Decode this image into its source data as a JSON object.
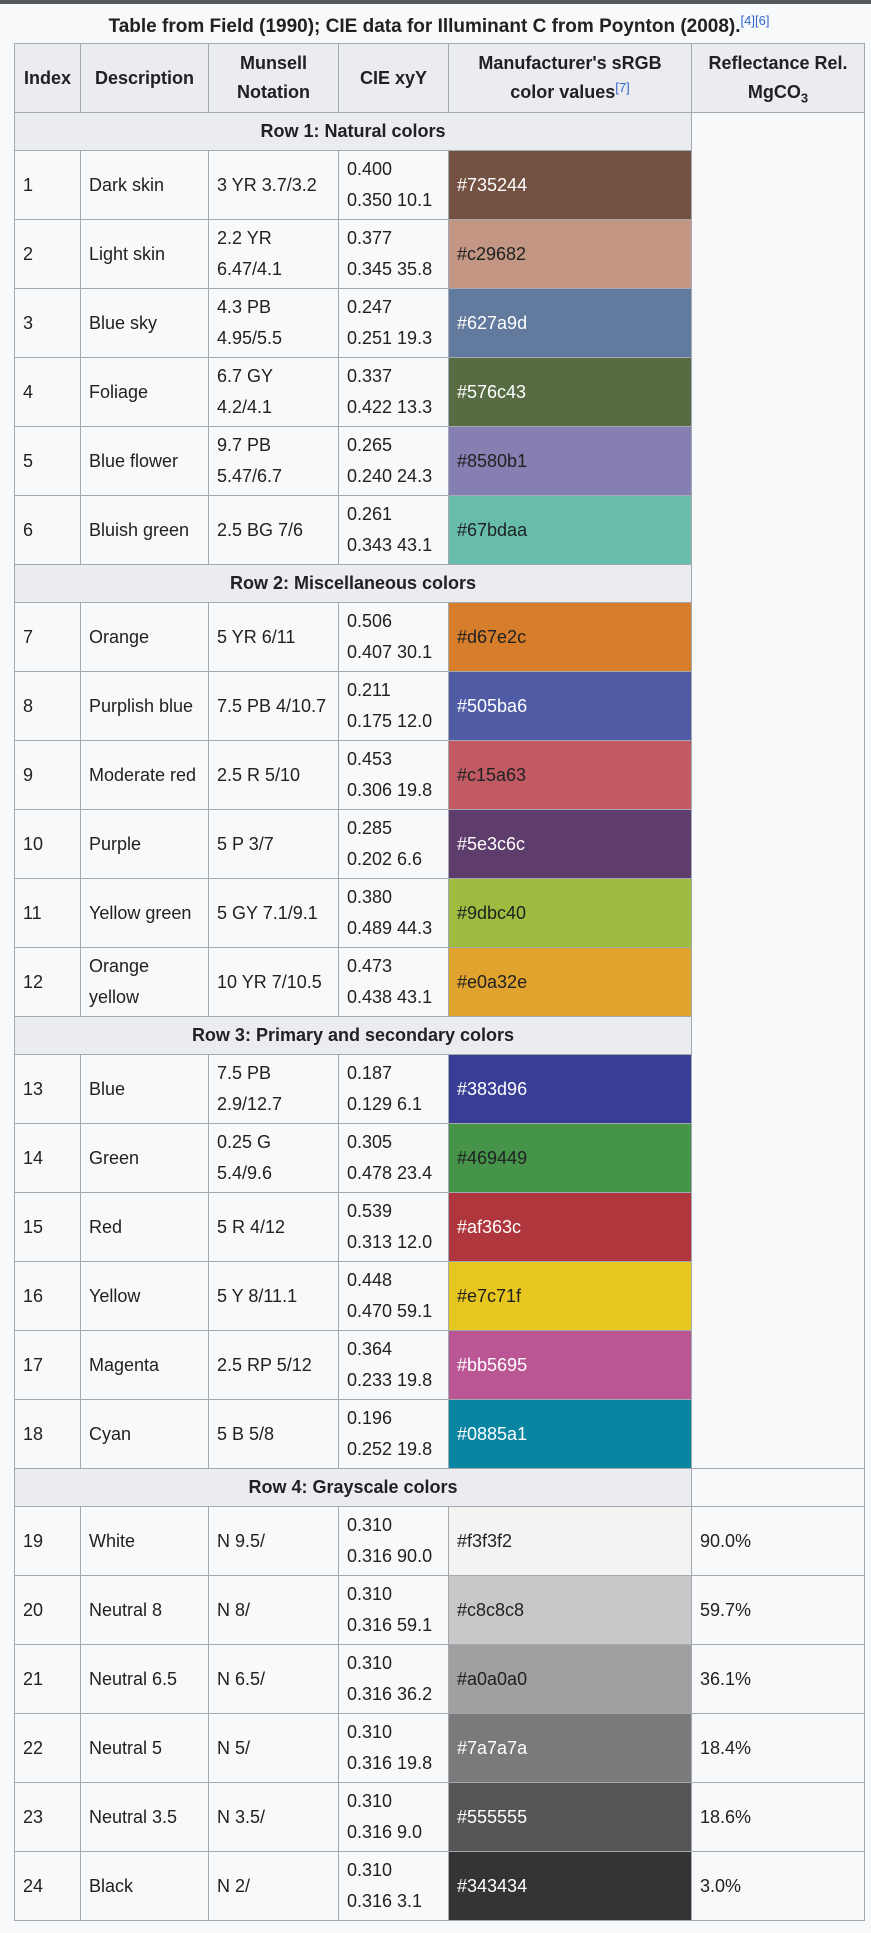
{
  "caption": {
    "text": "Table from Field (1990); CIE data for Illuminant C from Poynton (2008).",
    "refs": "[4][6]"
  },
  "headers": {
    "index": "Index",
    "description": "Description",
    "munsell_line1": "Munsell",
    "munsell_line2": "Notation",
    "cie": "CIE xyY",
    "srgb_line1": "Manufacturer's sRGB",
    "srgb_line2": "color values",
    "srgb_ref": "[7]",
    "refl_line1": "Reflectance Rel.",
    "refl_line2": "MgCO",
    "refl_sub": "3"
  },
  "groups": [
    {
      "title": "Row 1: Natural colors",
      "rows": [
        {
          "index": "1",
          "desc": "Dark skin",
          "munsell": "3 YR 3.7/3.2",
          "cie1": "0.400",
          "cie2": "0.350 10.1",
          "hex": "#735244",
          "text_color": "#ffffff"
        },
        {
          "index": "2",
          "desc": "Light skin",
          "munsell": "2.2 YR 6.47/4.1",
          "cie1": "0.377",
          "cie2": "0.345 35.8",
          "hex": "#c29682",
          "text_color": "#202122"
        },
        {
          "index": "3",
          "desc": "Blue sky",
          "munsell": "4.3 PB 4.95/5.5",
          "cie1": "0.247",
          "cie2": "0.251 19.3",
          "hex": "#627a9d",
          "text_color": "#ffffff"
        },
        {
          "index": "4",
          "desc": "Foliage",
          "munsell": "6.7 GY 4.2/4.1",
          "cie1": "0.337",
          "cie2": "0.422 13.3",
          "hex": "#576c43",
          "text_color": "#ffffff"
        },
        {
          "index": "5",
          "desc": "Blue flower",
          "munsell": "9.7 PB 5.47/6.7",
          "cie1": "0.265",
          "cie2": "0.240 24.3",
          "hex": "#8580b1",
          "text_color": "#202122"
        },
        {
          "index": "6",
          "desc": "Bluish green",
          "munsell": "2.5 BG 7/6",
          "cie1": "0.261",
          "cie2": "0.343 43.1",
          "hex": "#67bdaa",
          "text_color": "#202122"
        }
      ]
    },
    {
      "title": "Row 2: Miscellaneous colors",
      "rows": [
        {
          "index": "7",
          "desc": "Orange",
          "munsell": "5 YR 6/11",
          "cie1": "0.506",
          "cie2": "0.407 30.1",
          "hex": "#d67e2c",
          "text_color": "#202122"
        },
        {
          "index": "8",
          "desc": "Purplish blue",
          "munsell": "7.5 PB 4/10.7",
          "cie1": "0.211",
          "cie2": "0.175 12.0",
          "hex": "#505ba6",
          "text_color": "#ffffff"
        },
        {
          "index": "9",
          "desc": "Moderate red",
          "munsell": "2.5 R 5/10",
          "cie1": "0.453",
          "cie2": "0.306 19.8",
          "hex": "#c15a63",
          "text_color": "#202122"
        },
        {
          "index": "10",
          "desc": "Purple",
          "munsell": "5 P 3/7",
          "cie1": "0.285",
          "cie2": "0.202 6.6",
          "hex": "#5e3c6c",
          "text_color": "#ffffff"
        },
        {
          "index": "11",
          "desc": "Yellow green",
          "munsell": "5 GY 7.1/9.1",
          "cie1": "0.380",
          "cie2": "0.489 44.3",
          "hex": "#9dbc40",
          "text_color": "#202122"
        },
        {
          "index": "12",
          "desc": "Orange yellow",
          "munsell": "10 YR 7/10.5",
          "cie1": "0.473",
          "cie2": "0.438 43.1",
          "hex": "#e0a32e",
          "text_color": "#202122"
        }
      ]
    },
    {
      "title": "Row 3: Primary and secondary colors",
      "rows": [
        {
          "index": "13",
          "desc": "Blue",
          "munsell": "7.5 PB 2.9/12.7",
          "cie1": "0.187",
          "cie2": "0.129 6.1",
          "hex": "#383d96",
          "text_color": "#ffffff"
        },
        {
          "index": "14",
          "desc": "Green",
          "munsell": "0.25 G 5.4/9.6",
          "cie1": "0.305",
          "cie2": "0.478 23.4",
          "hex": "#469449",
          "text_color": "#202122"
        },
        {
          "index": "15",
          "desc": "Red",
          "munsell": "5 R 4/12",
          "cie1": "0.539",
          "cie2": "0.313 12.0",
          "hex": "#af363c",
          "text_color": "#ffffff"
        },
        {
          "index": "16",
          "desc": "Yellow",
          "munsell": "5 Y 8/11.1",
          "cie1": "0.448",
          "cie2": "0.470 59.1",
          "hex": "#e7c71f",
          "text_color": "#202122"
        },
        {
          "index": "17",
          "desc": "Magenta",
          "munsell": "2.5 RP 5/12",
          "cie1": "0.364",
          "cie2": "0.233 19.8",
          "hex": "#bb5695",
          "text_color": "#ffffff"
        },
        {
          "index": "18",
          "desc": "Cyan",
          "munsell": "5 B 5/8",
          "cie1": "0.196",
          "cie2": "0.252 19.8",
          "hex": "#0885a1",
          "text_color": "#ffffff"
        }
      ]
    },
    {
      "title": "Row 4: Grayscale colors",
      "rows": [
        {
          "index": "19",
          "desc": "White",
          "munsell": "N 9.5/",
          "cie1": "0.310",
          "cie2": "0.316 90.0",
          "hex": "#f3f3f2",
          "text_color": "#202122",
          "refl": "90.0%"
        },
        {
          "index": "20",
          "desc": "Neutral 8",
          "munsell": "N 8/",
          "cie1": "0.310",
          "cie2": "0.316 59.1",
          "hex": "#c8c8c8",
          "text_color": "#202122",
          "refl": "59.7%"
        },
        {
          "index": "21",
          "desc": "Neutral 6.5",
          "munsell": "N 6.5/",
          "cie1": "0.310",
          "cie2": "0.316 36.2",
          "hex": "#a0a0a0",
          "text_color": "#202122",
          "refl": "36.1%"
        },
        {
          "index": "22",
          "desc": "Neutral 5",
          "munsell": "N 5/",
          "cie1": "0.310",
          "cie2": "0.316 19.8",
          "hex": "#7a7a7a",
          "text_color": "#ffffff",
          "refl": "18.4%"
        },
        {
          "index": "23",
          "desc": "Neutral 3.5",
          "munsell": "N 3.5/",
          "cie1": "0.310",
          "cie2": "0.316 9.0",
          "hex": "#555555",
          "text_color": "#ffffff",
          "refl": "18.6%"
        },
        {
          "index": "24",
          "desc": "Black",
          "munsell": "N 2/",
          "cie1": "0.310",
          "cie2": "0.316 3.1",
          "hex": "#343434",
          "text_color": "#ffffff",
          "refl": "3.0%"
        }
      ]
    }
  ]
}
